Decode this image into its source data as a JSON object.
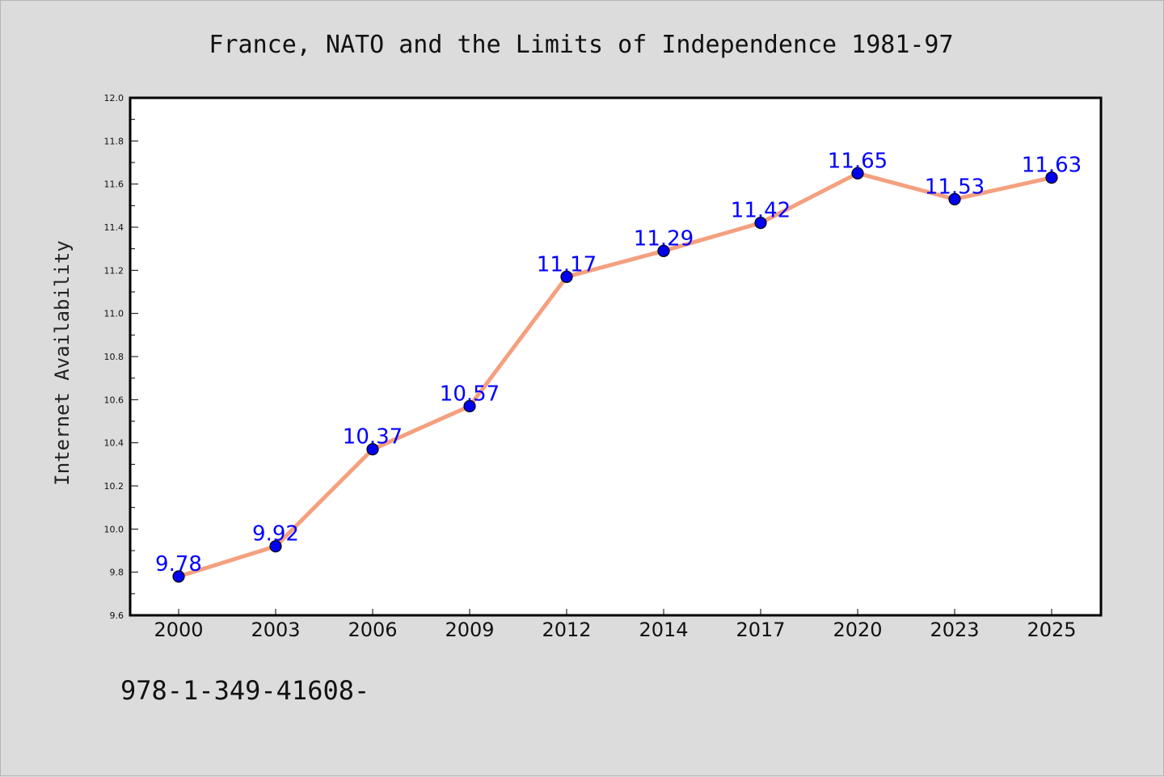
{
  "chart_data": {
    "type": "line",
    "title": "France, NATO and the Limits of Independence 1981-97",
    "xlabel": "",
    "ylabel": "Internet Availability",
    "categories": [
      "2000",
      "2003",
      "2006",
      "2009",
      "2012",
      "2014",
      "2017",
      "2020",
      "2023",
      "2025"
    ],
    "series": [
      {
        "values": [
          9.78,
          9.92,
          10.37,
          10.57,
          11.17,
          11.29,
          11.42,
          11.65,
          11.53,
          11.63
        ],
        "labels": [
          "9.78",
          "9.92",
          "10.37",
          "10.57",
          "11.17",
          "11.29",
          "11.42",
          "11.65",
          "11.53",
          "11.63"
        ],
        "line_color": "#f4a07f",
        "marker_color": "#0000ee"
      }
    ],
    "ylim": [
      9.6,
      12.0
    ],
    "yticks": [
      "9.6",
      "9.8",
      "10.0",
      "10.2",
      "10.4",
      "10.6",
      "10.8",
      "11.0",
      "11.2",
      "11.4",
      "11.6",
      "11.8",
      "12.0"
    ],
    "ytick_values": [
      9.6,
      9.8,
      10.0,
      10.2,
      10.4,
      10.6,
      10.8,
      11.0,
      11.2,
      11.4,
      11.6,
      11.8,
      12.0
    ],
    "grid": false,
    "data_label_color": "#0000ff"
  },
  "footnote": "978-1-349-41608-"
}
